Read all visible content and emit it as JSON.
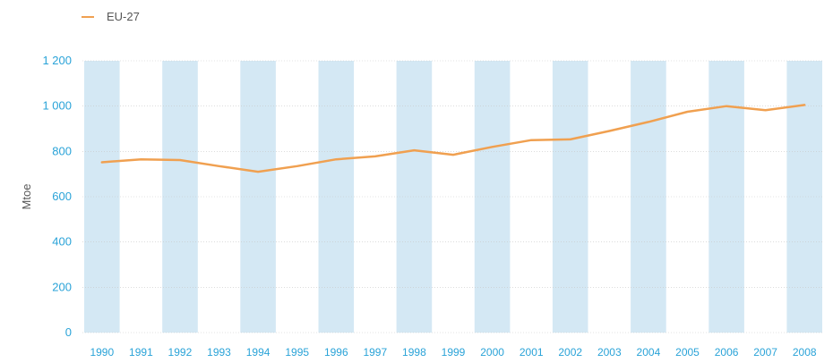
{
  "chart_data": {
    "type": "line",
    "title": "",
    "xlabel": "",
    "ylabel": "Mtoe",
    "ylim": [
      0,
      1200
    ],
    "yticks": [
      0,
      200,
      400,
      600,
      800,
      1000,
      1200
    ],
    "ytick_labels": [
      "0",
      "200",
      "400",
      "600",
      "800",
      "1 000",
      "1 200"
    ],
    "categories": [
      "1990",
      "1991",
      "1992",
      "1993",
      "1994",
      "1995",
      "1996",
      "1997",
      "1998",
      "1999",
      "2000",
      "2001",
      "2002",
      "2003",
      "2004",
      "2005",
      "2006",
      "2007",
      "2008"
    ],
    "series": [
      {
        "name": "EU-27",
        "color": "#f0a050",
        "values": [
          752,
          765,
          762,
          735,
          710,
          735,
          765,
          778,
          805,
          785,
          820,
          850,
          853,
          890,
          930,
          975,
          1000,
          982,
          1005
        ]
      }
    ],
    "legend_position": "top-left",
    "band_color": "#d4e8f4",
    "tick_color": "#2aa3d8"
  }
}
